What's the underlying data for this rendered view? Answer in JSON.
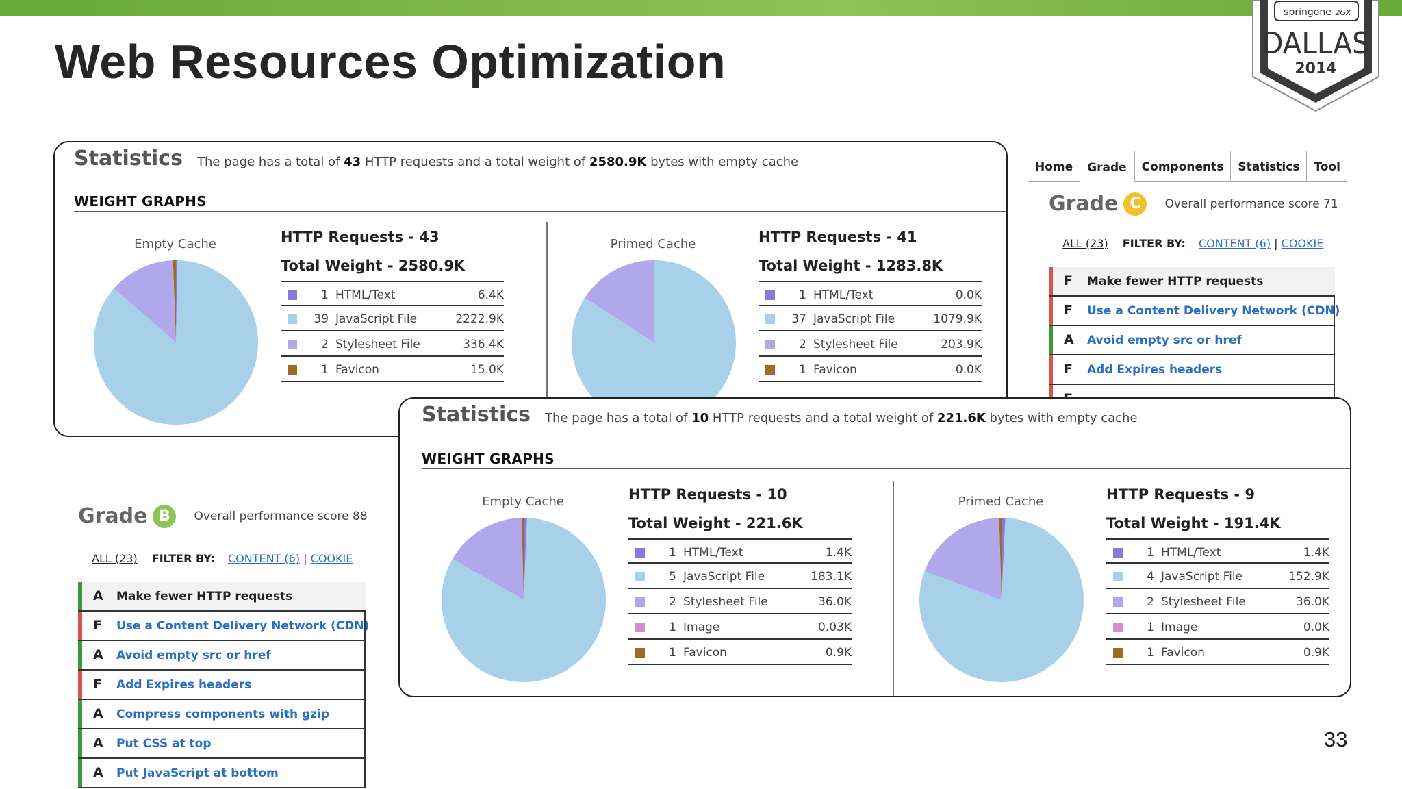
{
  "slide": {
    "title": "Web Resources Optimization",
    "page_number": "33"
  },
  "badge": {
    "brand": "springone",
    "city": "DALLAS",
    "year": "2014"
  },
  "colors": {
    "html": "#8a78e0",
    "js": "#a8d0e8",
    "css": "#b1a8ec",
    "image": "#d68ad0",
    "favicon": "#a06a24",
    "green": "#3a9a3a",
    "red": "#d9534f"
  },
  "panel_top": {
    "title": "Statistics",
    "summary": {
      "pre": "The page has a total of ",
      "requests": "43",
      "mid": " HTTP requests and a total weight of ",
      "weight": "2580.9K",
      "post": " bytes with empty cache"
    },
    "weight_graphs_label": "WEIGHT GRAPHS",
    "empty": {
      "cache_label": "Empty Cache",
      "requests_title": "HTTP Requests - 43",
      "weight_title": "Total Weight - 2580.9K",
      "rows": [
        {
          "count": "1",
          "label": "HTML/Text",
          "value": "6.4K",
          "kind": "html"
        },
        {
          "count": "39",
          "label": "JavaScript File",
          "value": "2222.9K",
          "kind": "js"
        },
        {
          "count": "2",
          "label": "Stylesheet File",
          "value": "336.4K",
          "kind": "css"
        },
        {
          "count": "1",
          "label": "Favicon",
          "value": "15.0K",
          "kind": "favicon"
        }
      ]
    },
    "primed": {
      "cache_label": "Primed Cache",
      "requests_title": "HTTP Requests - 41",
      "weight_title": "Total Weight - 1283.8K",
      "rows": [
        {
          "count": "1",
          "label": "HTML/Text",
          "value": "0.0K",
          "kind": "html"
        },
        {
          "count": "37",
          "label": "JavaScript File",
          "value": "1079.9K",
          "kind": "js"
        },
        {
          "count": "2",
          "label": "Stylesheet File",
          "value": "203.9K",
          "kind": "css"
        },
        {
          "count": "1",
          "label": "Favicon",
          "value": "0.0K",
          "kind": "favicon"
        }
      ]
    }
  },
  "panel_bottom": {
    "title": "Statistics",
    "summary": {
      "pre": "The page has a total of ",
      "requests": "10",
      "mid": " HTTP requests and a total weight of ",
      "weight": "221.6K",
      "post": " bytes with empty cache"
    },
    "weight_graphs_label": "WEIGHT GRAPHS",
    "empty": {
      "cache_label": "Empty Cache",
      "requests_title": "HTTP Requests - 10",
      "weight_title": "Total Weight - 221.6K",
      "rows": [
        {
          "count": "1",
          "label": "HTML/Text",
          "value": "1.4K",
          "kind": "html"
        },
        {
          "count": "5",
          "label": "JavaScript File",
          "value": "183.1K",
          "kind": "js"
        },
        {
          "count": "2",
          "label": "Stylesheet File",
          "value": "36.0K",
          "kind": "css"
        },
        {
          "count": "1",
          "label": "Image",
          "value": "0.03K",
          "kind": "image"
        },
        {
          "count": "1",
          "label": "Favicon",
          "value": "0.9K",
          "kind": "favicon"
        }
      ]
    },
    "primed": {
      "cache_label": "Primed Cache",
      "requests_title": "HTTP Requests - 9",
      "weight_title": "Total Weight - 191.4K",
      "rows": [
        {
          "count": "1",
          "label": "HTML/Text",
          "value": "1.4K",
          "kind": "html"
        },
        {
          "count": "4",
          "label": "JavaScript File",
          "value": "152.9K",
          "kind": "js"
        },
        {
          "count": "2",
          "label": "Stylesheet File",
          "value": "36.0K",
          "kind": "css"
        },
        {
          "count": "1",
          "label": "Image",
          "value": "0.0K",
          "kind": "image"
        },
        {
          "count": "1",
          "label": "Favicon",
          "value": "0.9K",
          "kind": "favicon"
        }
      ]
    }
  },
  "grade_right": {
    "tabs": [
      "Home",
      "Grade",
      "Components",
      "Statistics",
      "Tool"
    ],
    "active_tab": "Grade",
    "grade_word": "Grade",
    "grade_letter": "C",
    "score_text": "Overall performance score 71",
    "filter": {
      "all": "ALL (23)",
      "by": "FILTER BY:",
      "content": "CONTENT (6)",
      "sep": "|",
      "cookie": "COOKIE"
    },
    "rules": [
      {
        "grade": "F",
        "text": "Make fewer HTTP requests",
        "status": "red"
      },
      {
        "grade": "F",
        "text": "Use a Content Delivery Network (CDN)",
        "status": "red"
      },
      {
        "grade": "A",
        "text": "Avoid empty src or href",
        "status": "green"
      },
      {
        "grade": "F",
        "text": "Add Expires headers",
        "status": "red"
      },
      {
        "grade": "F",
        "text": "",
        "status": "red"
      }
    ]
  },
  "grade_left": {
    "grade_word": "Grade",
    "grade_letter": "B",
    "score_text": "Overall performance score 88",
    "filter": {
      "all": "ALL (23)",
      "by": "FILTER BY:",
      "content": "CONTENT (6)",
      "sep": "|",
      "cookie": "COOKIE"
    },
    "rules": [
      {
        "grade": "A",
        "text": "Make fewer HTTP requests",
        "status": "green"
      },
      {
        "grade": "F",
        "text": "Use a Content Delivery Network (CDN)",
        "status": "red"
      },
      {
        "grade": "A",
        "text": "Avoid empty src or href",
        "status": "green"
      },
      {
        "grade": "F",
        "text": "Add Expires headers",
        "status": "red"
      },
      {
        "grade": "A",
        "text": "Compress components with gzip",
        "status": "green"
      },
      {
        "grade": "A",
        "text": "Put CSS at top",
        "status": "green"
      },
      {
        "grade": "A",
        "text": "Put JavaScript at bottom",
        "status": "green"
      }
    ]
  },
  "chart_data": [
    {
      "type": "pie",
      "title": "Empty Cache",
      "categories": [
        "HTML/Text",
        "JavaScript File",
        "Stylesheet File",
        "Favicon"
      ],
      "values": [
        6.4,
        2222.9,
        336.4,
        15.0
      ]
    },
    {
      "type": "pie",
      "title": "Primed Cache",
      "categories": [
        "HTML/Text",
        "JavaScript File",
        "Stylesheet File",
        "Favicon"
      ],
      "values": [
        0.0,
        1079.9,
        203.9,
        0.0
      ]
    },
    {
      "type": "pie",
      "title": "Empty Cache",
      "categories": [
        "HTML/Text",
        "JavaScript File",
        "Stylesheet File",
        "Image",
        "Favicon"
      ],
      "values": [
        1.4,
        183.1,
        36.0,
        0.03,
        0.9
      ]
    },
    {
      "type": "pie",
      "title": "Primed Cache",
      "categories": [
        "HTML/Text",
        "JavaScript File",
        "Stylesheet File",
        "Image",
        "Favicon"
      ],
      "values": [
        1.4,
        152.9,
        36.0,
        0.0,
        0.9
      ]
    }
  ]
}
